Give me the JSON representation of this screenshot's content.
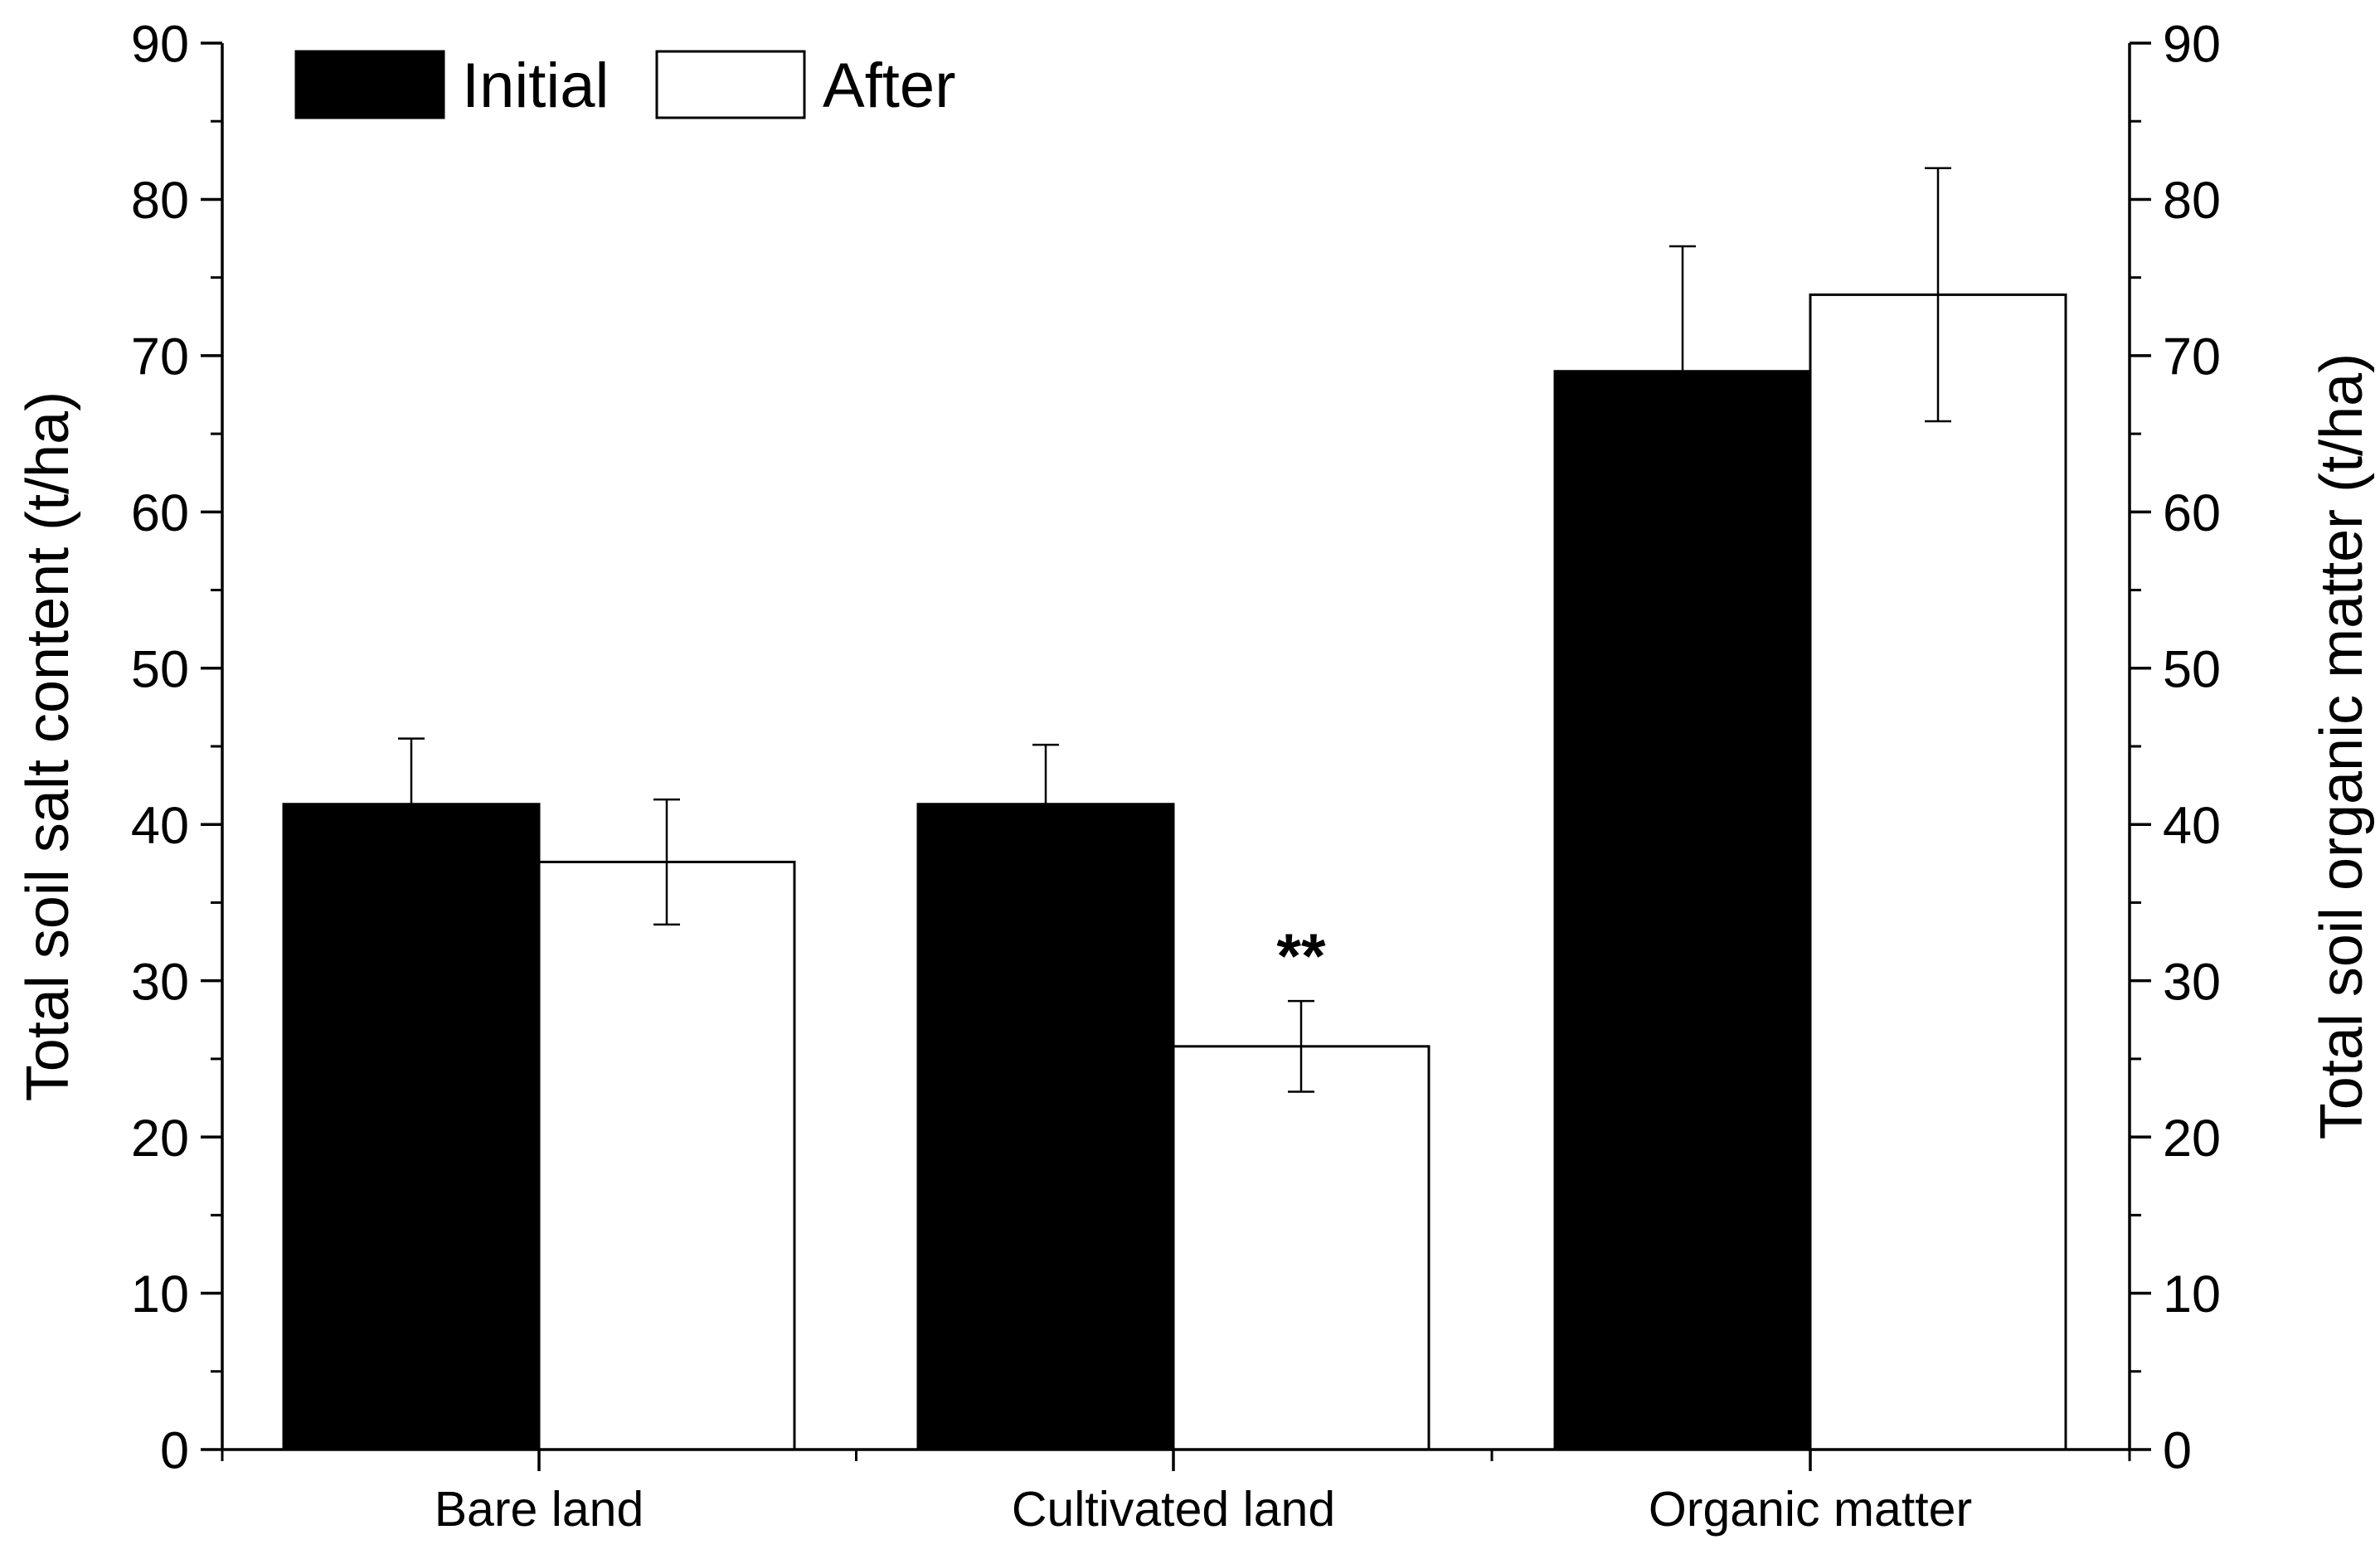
{
  "chart_data": {
    "type": "bar",
    "categories": [
      "Bare land",
      "Cultivated land",
      "Organic matter"
    ],
    "series": [
      {
        "name": "Initial",
        "color": "#000000",
        "values": [
          41.3,
          41.3,
          69.0
        ],
        "errors": [
          4.2,
          3.8,
          8.0
        ]
      },
      {
        "name": "After",
        "color": "#ffffff",
        "values": [
          37.6,
          25.8,
          73.9
        ],
        "errors": [
          4.0,
          2.9,
          8.1
        ]
      }
    ],
    "annotations": [
      {
        "text": "**",
        "category": "Cultivated land",
        "series": "After"
      }
    ],
    "ylabel_left": "Total soil  salt content (t/ha)",
    "ylabel_right": "Total soil organic matter (t/ha)",
    "xlabel": "",
    "ylim": [
      0,
      90
    ],
    "yticks": [
      0,
      10,
      20,
      30,
      40,
      50,
      60,
      70,
      80,
      90
    ],
    "legend_position": "top-left",
    "grid": false
  }
}
